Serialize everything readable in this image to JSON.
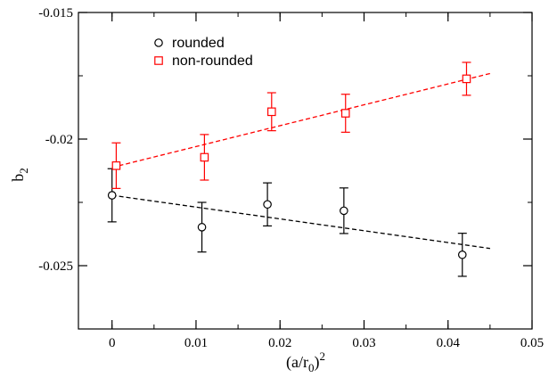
{
  "chart_data": {
    "type": "scatter",
    "xlabel": {
      "base": "(a/r",
      "sub": "0",
      "close": ")",
      "sup": "2"
    },
    "ylabel": {
      "base": "b",
      "sub": "2"
    },
    "xlim": [
      -0.004,
      0.05
    ],
    "ylim": [
      -0.0275,
      -0.015
    ],
    "xticks": [
      0,
      0.01,
      0.02,
      0.03,
      0.04,
      0.05
    ],
    "xtick_labels": [
      "0",
      "0.01",
      "0.02",
      "0.03",
      "0.04",
      "0.05"
    ],
    "yticks": [
      -0.025,
      -0.02,
      -0.015
    ],
    "ytick_labels": [
      "-0.025",
      "-0.02",
      "-0.015"
    ],
    "x_minor_step": 0.005,
    "y_minor_step": 0.0025,
    "grid": false,
    "legend_position": "top-left",
    "series": [
      {
        "name": "rounded",
        "color": "#000000",
        "marker": "circle",
        "x": [
          0.0,
          0.0107,
          0.0185,
          0.0276,
          0.0417
        ],
        "y": [
          -0.02222,
          -0.02348,
          -0.02258,
          -0.02283,
          -0.02457
        ],
        "err": [
          0.00105,
          0.00098,
          0.00085,
          0.0009,
          0.00085
        ],
        "fit": {
          "x": [
            0.0,
            0.045
          ],
          "y": [
            -0.02222,
            -0.02432
          ]
        }
      },
      {
        "name": "non-rounded",
        "color": "#ff0000",
        "marker": "square",
        "x": [
          0.0005,
          0.011,
          0.019,
          0.0278,
          0.0422
        ],
        "y": [
          -0.02105,
          -0.02072,
          -0.01892,
          -0.01898,
          -0.01762
        ],
        "err": [
          0.0009,
          0.0009,
          0.00075,
          0.00075,
          0.00065
        ],
        "fit": {
          "x": [
            0.0,
            0.045
          ],
          "y": [
            -0.02112,
            -0.01741
          ]
        }
      }
    ]
  }
}
